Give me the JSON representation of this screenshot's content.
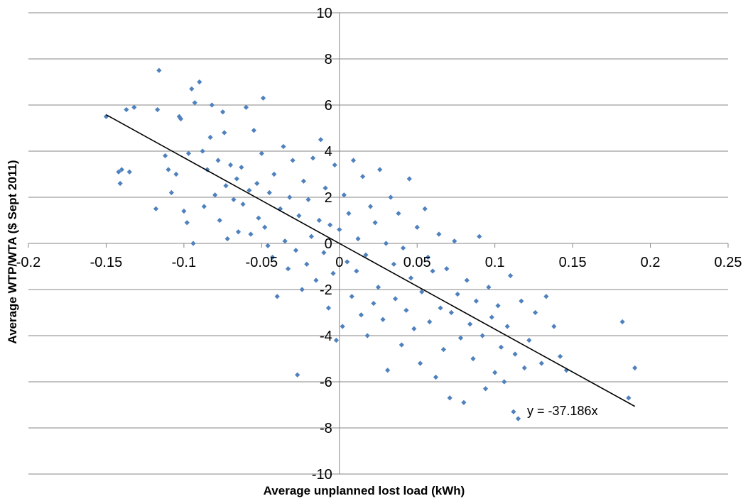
{
  "chart_data": {
    "type": "scatter",
    "xlabel": "Average unplanned lost load (kWh)",
    "ylabel": "Average WTP/WTA ($ Sept 2011)",
    "xlim": [
      -0.2,
      0.25
    ],
    "ylim": [
      -10,
      10
    ],
    "x_ticks": [
      -0.2,
      -0.15,
      -0.1,
      -0.05,
      0,
      0.05,
      0.1,
      0.15,
      0.2,
      0.25
    ],
    "y_ticks": [
      -10,
      -8,
      -6,
      -4,
      -2,
      0,
      2,
      4,
      6,
      8,
      10
    ],
    "x_tick_labels": [
      "-0.2",
      "-0.15",
      "-0.1",
      "-0.05",
      "0",
      "0.05",
      "0.1",
      "0.15",
      "0.2",
      "0.25"
    ],
    "y_tick_labels": [
      "-10",
      "-8",
      "-6",
      "-4",
      "-2",
      "0",
      "2",
      "4",
      "6",
      "8",
      "10"
    ],
    "grid": "horizontal",
    "marker_color": "#4f81bd",
    "trendline": {
      "slope": -37.186,
      "x_range": [
        -0.15,
        0.19
      ],
      "label": "y = -37.186x",
      "color": "#000000"
    },
    "points": [
      [
        -0.15,
        5.5
      ],
      [
        -0.142,
        3.1
      ],
      [
        -0.141,
        2.6
      ],
      [
        -0.14,
        3.2
      ],
      [
        -0.137,
        5.8
      ],
      [
        -0.135,
        3.1
      ],
      [
        -0.132,
        5.9
      ],
      [
        -0.118,
        1.5
      ],
      [
        -0.117,
        5.8
      ],
      [
        -0.116,
        7.5
      ],
      [
        -0.112,
        3.8
      ],
      [
        -0.11,
        3.2
      ],
      [
        -0.108,
        2.2
      ],
      [
        -0.105,
        3.0
      ],
      [
        -0.103,
        5.5
      ],
      [
        -0.102,
        5.4
      ],
      [
        -0.1,
        1.4
      ],
      [
        -0.098,
        0.9
      ],
      [
        -0.097,
        3.9
      ],
      [
        -0.095,
        6.7
      ],
      [
        -0.094,
        0.0
      ],
      [
        -0.093,
        6.1
      ],
      [
        -0.09,
        7.0
      ],
      [
        -0.088,
        4.0
      ],
      [
        -0.087,
        1.6
      ],
      [
        -0.085,
        3.2
      ],
      [
        -0.083,
        4.6
      ],
      [
        -0.082,
        6.0
      ],
      [
        -0.08,
        2.1
      ],
      [
        -0.078,
        3.6
      ],
      [
        -0.077,
        1.0
      ],
      [
        -0.075,
        5.7
      ],
      [
        -0.074,
        4.8
      ],
      [
        -0.073,
        2.5
      ],
      [
        -0.072,
        0.2
      ],
      [
        -0.07,
        3.4
      ],
      [
        -0.068,
        1.9
      ],
      [
        -0.066,
        2.8
      ],
      [
        -0.065,
        0.5
      ],
      [
        -0.063,
        3.3
      ],
      [
        -0.062,
        1.7
      ],
      [
        -0.06,
        5.9
      ],
      [
        -0.058,
        2.3
      ],
      [
        -0.057,
        0.4
      ],
      [
        -0.055,
        4.9
      ],
      [
        -0.053,
        2.6
      ],
      [
        -0.052,
        1.1
      ],
      [
        -0.05,
        3.9
      ],
      [
        -0.049,
        6.3
      ],
      [
        -0.048,
        0.7
      ],
      [
        -0.046,
        -0.1
      ],
      [
        -0.045,
        2.2
      ],
      [
        -0.043,
        -0.6
      ],
      [
        -0.042,
        3.0
      ],
      [
        -0.04,
        -2.3
      ],
      [
        -0.038,
        1.5
      ],
      [
        -0.036,
        4.2
      ],
      [
        -0.035,
        0.1
      ],
      [
        -0.033,
        -1.1
      ],
      [
        -0.032,
        2.0
      ],
      [
        -0.03,
        3.6
      ],
      [
        -0.028,
        -0.3
      ],
      [
        -0.027,
        -5.7
      ],
      [
        -0.026,
        1.2
      ],
      [
        -0.024,
        -2.0
      ],
      [
        -0.023,
        2.7
      ],
      [
        -0.021,
        -0.9
      ],
      [
        -0.02,
        1.9
      ],
      [
        -0.018,
        0.3
      ],
      [
        -0.017,
        3.7
      ],
      [
        -0.015,
        -1.6
      ],
      [
        -0.013,
        1.0
      ],
      [
        -0.012,
        4.5
      ],
      [
        -0.01,
        -0.4
      ],
      [
        -0.009,
        2.4
      ],
      [
        -0.007,
        -2.8
      ],
      [
        -0.006,
        0.8
      ],
      [
        -0.004,
        -1.3
      ],
      [
        -0.003,
        3.4
      ],
      [
        -0.002,
        -4.2
      ],
      [
        0.0,
        0.6
      ],
      [
        0.002,
        -3.6
      ],
      [
        0.003,
        2.1
      ],
      [
        0.005,
        -0.8
      ],
      [
        0.006,
        1.3
      ],
      [
        0.008,
        -2.3
      ],
      [
        0.009,
        3.6
      ],
      [
        0.011,
        -1.2
      ],
      [
        0.012,
        0.2
      ],
      [
        0.014,
        -3.1
      ],
      [
        0.015,
        2.9
      ],
      [
        0.017,
        -0.5
      ],
      [
        0.018,
        -4.0
      ],
      [
        0.02,
        1.6
      ],
      [
        0.022,
        -2.6
      ],
      [
        0.023,
        0.9
      ],
      [
        0.025,
        -1.9
      ],
      [
        0.026,
        3.2
      ],
      [
        0.028,
        -3.3
      ],
      [
        0.03,
        0.0
      ],
      [
        0.031,
        -5.5
      ],
      [
        0.033,
        2.0
      ],
      [
        0.035,
        -0.9
      ],
      [
        0.036,
        -2.4
      ],
      [
        0.038,
        1.3
      ],
      [
        0.04,
        -4.4
      ],
      [
        0.041,
        -0.2
      ],
      [
        0.043,
        -2.9
      ],
      [
        0.045,
        2.8
      ],
      [
        0.046,
        -1.5
      ],
      [
        0.048,
        -3.7
      ],
      [
        0.05,
        0.7
      ],
      [
        0.052,
        -5.2
      ],
      [
        0.053,
        -2.1
      ],
      [
        0.055,
        1.5
      ],
      [
        0.057,
        -0.6
      ],
      [
        0.058,
        -3.4
      ],
      [
        0.06,
        -1.2
      ],
      [
        0.062,
        -5.8
      ],
      [
        0.064,
        0.4
      ],
      [
        0.065,
        -2.8
      ],
      [
        0.067,
        -4.6
      ],
      [
        0.069,
        -1.1
      ],
      [
        0.071,
        -6.7
      ],
      [
        0.072,
        -3.0
      ],
      [
        0.074,
        0.1
      ],
      [
        0.076,
        -2.2
      ],
      [
        0.078,
        -4.1
      ],
      [
        0.08,
        -6.9
      ],
      [
        0.082,
        -1.6
      ],
      [
        0.084,
        -3.5
      ],
      [
        0.086,
        -5.0
      ],
      [
        0.088,
        -2.5
      ],
      [
        0.09,
        0.3
      ],
      [
        0.092,
        -4.0
      ],
      [
        0.094,
        -6.3
      ],
      [
        0.096,
        -1.9
      ],
      [
        0.098,
        -3.2
      ],
      [
        0.1,
        -5.6
      ],
      [
        0.102,
        -2.7
      ],
      [
        0.104,
        -4.5
      ],
      [
        0.106,
        -6.0
      ],
      [
        0.108,
        -3.6
      ],
      [
        0.11,
        -1.4
      ],
      [
        0.112,
        -7.3
      ],
      [
        0.113,
        -4.8
      ],
      [
        0.115,
        -7.6
      ],
      [
        0.117,
        -2.5
      ],
      [
        0.119,
        -5.4
      ],
      [
        0.122,
        -4.2
      ],
      [
        0.126,
        -3.0
      ],
      [
        0.13,
        -5.2
      ],
      [
        0.133,
        -2.3
      ],
      [
        0.138,
        -3.6
      ],
      [
        0.142,
        -4.9
      ],
      [
        0.146,
        -5.5
      ],
      [
        0.182,
        -3.4
      ],
      [
        0.186,
        -6.7
      ],
      [
        0.19,
        -5.4
      ]
    ]
  }
}
